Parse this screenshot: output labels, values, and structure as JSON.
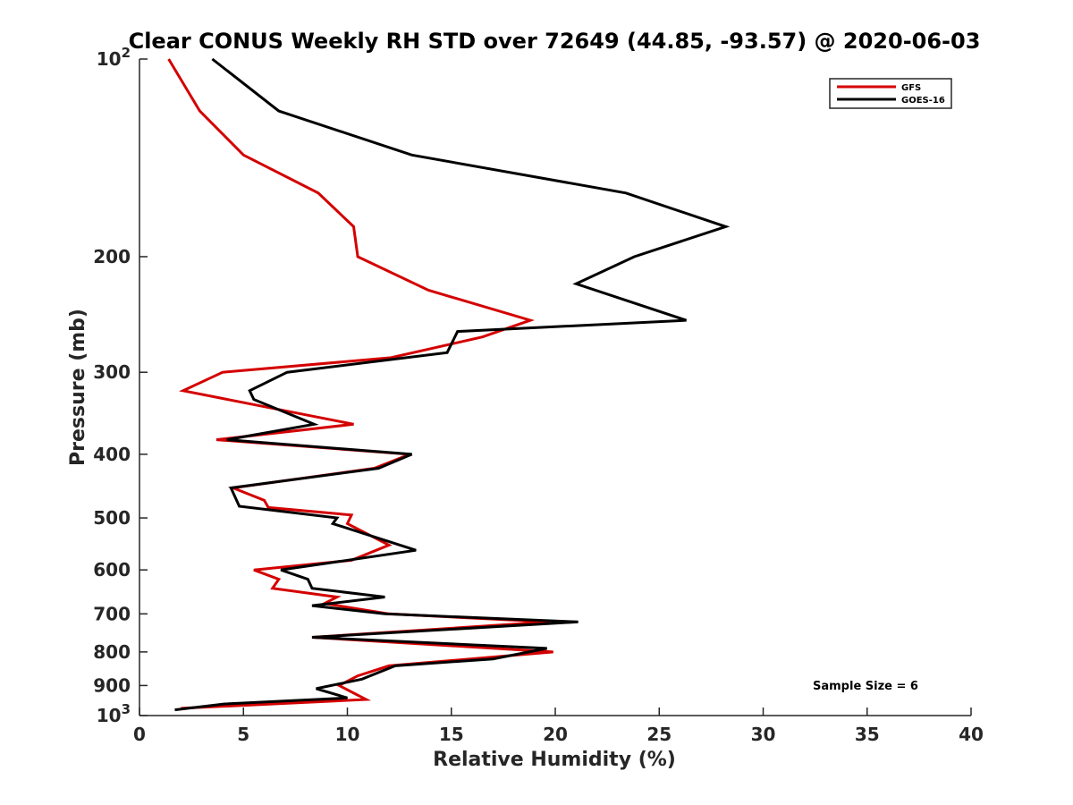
{
  "chart_data": {
    "type": "line",
    "title": "Clear CONUS Weekly RH STD over 72649 (44.85, -93.57) @ 2020-06-03",
    "xlabel": "Relative Humidity (%)",
    "ylabel": "Pressure (mb)",
    "xlim": [
      0,
      40
    ],
    "ylim": [
      100,
      1000
    ],
    "yscale": "log",
    "y_reversed": true,
    "xticks": [
      "0",
      "5",
      "10",
      "15",
      "20",
      "25",
      "30",
      "35",
      "40"
    ],
    "yticks": [
      {
        "value": 100,
        "label": "10",
        "exp": "2"
      },
      {
        "value": 200,
        "label": "200",
        "exp": ""
      },
      {
        "value": 300,
        "label": "300",
        "exp": ""
      },
      {
        "value": 400,
        "label": "400",
        "exp": ""
      },
      {
        "value": 500,
        "label": "500",
        "exp": ""
      },
      {
        "value": 600,
        "label": "600",
        "exp": ""
      },
      {
        "value": 700,
        "label": "700",
        "exp": ""
      },
      {
        "value": 800,
        "label": "800",
        "exp": ""
      },
      {
        "value": 900,
        "label": "900",
        "exp": ""
      },
      {
        "value": 1000,
        "label": "10",
        "exp": "3"
      }
    ],
    "grid": false,
    "legend_position": "top-right",
    "annotation": "Sample Size = 6",
    "series": [
      {
        "name": "GFS",
        "color": "#d40000",
        "points": [
          [
            1.4,
            100
          ],
          [
            2.9,
            120
          ],
          [
            5.0,
            140
          ],
          [
            8.6,
            160
          ],
          [
            10.3,
            180
          ],
          [
            10.5,
            200
          ],
          [
            13.9,
            225
          ],
          [
            18.8,
            250
          ],
          [
            16.5,
            265
          ],
          [
            12.1,
            285
          ],
          [
            4.0,
            300
          ],
          [
            2.1,
            320
          ],
          [
            10.3,
            360
          ],
          [
            3.7,
            380
          ],
          [
            13.0,
            400
          ],
          [
            11.3,
            420
          ],
          [
            4.5,
            450
          ],
          [
            6.0,
            470
          ],
          [
            6.2,
            482
          ],
          [
            10.2,
            495
          ],
          [
            10.0,
            510
          ],
          [
            12.0,
            550
          ],
          [
            10.2,
            580
          ],
          [
            5.5,
            600
          ],
          [
            6.7,
            620
          ],
          [
            6.4,
            640
          ],
          [
            9.5,
            660
          ],
          [
            8.9,
            675
          ],
          [
            12.0,
            700
          ],
          [
            19.7,
            720
          ],
          [
            8.3,
            760
          ],
          [
            19.9,
            800
          ],
          [
            12.0,
            840
          ],
          [
            10.5,
            870
          ],
          [
            9.6,
            900
          ],
          [
            10.9,
            945
          ],
          [
            2.0,
            975
          ]
        ]
      },
      {
        "name": "GOES-16",
        "color": "#000000",
        "points": [
          [
            3.5,
            100
          ],
          [
            6.7,
            120
          ],
          [
            13.1,
            140
          ],
          [
            23.4,
            160
          ],
          [
            28.2,
            180
          ],
          [
            23.8,
            200
          ],
          [
            21.0,
            220
          ],
          [
            26.3,
            250
          ],
          [
            15.3,
            260
          ],
          [
            14.8,
            280
          ],
          [
            7.1,
            300
          ],
          [
            5.3,
            320
          ],
          [
            5.5,
            330
          ],
          [
            8.4,
            360
          ],
          [
            4.2,
            380
          ],
          [
            13.1,
            400
          ],
          [
            11.5,
            420
          ],
          [
            4.4,
            450
          ],
          [
            4.8,
            480
          ],
          [
            9.5,
            500
          ],
          [
            9.3,
            510
          ],
          [
            13.3,
            560
          ],
          [
            6.8,
            600
          ],
          [
            8.1,
            620
          ],
          [
            8.3,
            640
          ],
          [
            11.8,
            660
          ],
          [
            8.3,
            680
          ],
          [
            11.8,
            700
          ],
          [
            21.1,
            720
          ],
          [
            8.3,
            760
          ],
          [
            19.6,
            790
          ],
          [
            17.0,
            820
          ],
          [
            12.3,
            840
          ],
          [
            10.7,
            880
          ],
          [
            8.5,
            910
          ],
          [
            10.0,
            940
          ],
          [
            4.1,
            960
          ],
          [
            1.7,
            980
          ]
        ]
      }
    ]
  }
}
